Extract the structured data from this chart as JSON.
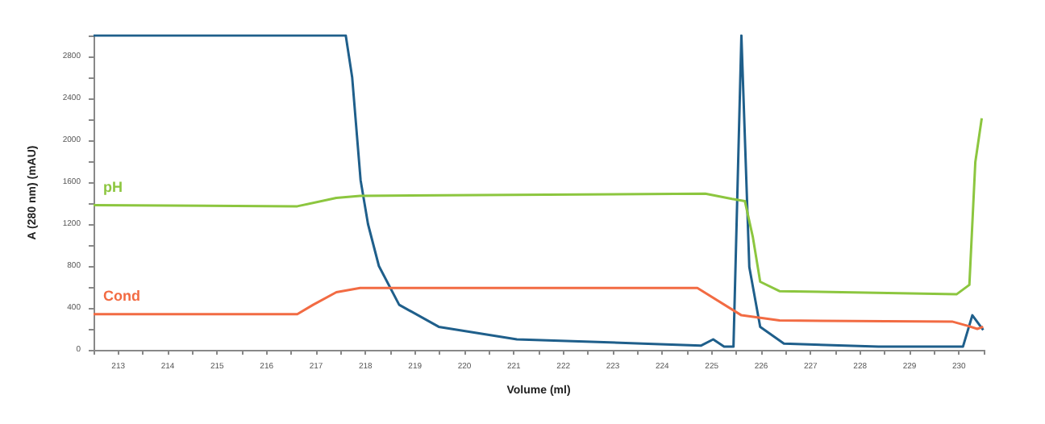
{
  "chart_data": {
    "type": "line",
    "xlabel": "Volume (ml)",
    "ylabel": "A (280 nm) (mAU)",
    "xlim": [
      212.5,
      230.5
    ],
    "ylim": [
      0,
      3000
    ],
    "xticks": [
      {
        "value": 212.5,
        "label": null
      },
      213,
      {
        "value": 213.5,
        "label": null
      },
      214,
      {
        "value": 214.5,
        "label": null
      },
      215,
      {
        "value": 215.5,
        "label": null
      },
      216,
      {
        "value": 216.5,
        "label": null
      },
      217,
      {
        "value": 217.5,
        "label": null
      },
      218,
      {
        "value": 218.5,
        "label": null
      },
      219,
      {
        "value": 219.5,
        "label": null
      },
      220,
      {
        "value": 220.5,
        "label": null
      },
      221,
      {
        "value": 221.5,
        "label": null
      },
      222,
      {
        "value": 222.5,
        "label": null
      },
      223,
      {
        "value": 223.5,
        "label": null
      },
      224,
      {
        "value": 224.5,
        "label": null
      },
      225,
      {
        "value": 225.5,
        "label": null
      },
      226,
      {
        "value": 226.5,
        "label": null
      },
      227,
      {
        "value": 227.5,
        "label": null
      },
      228,
      {
        "value": 228.5,
        "label": null
      },
      229,
      {
        "value": 229.5,
        "label": null
      },
      230,
      {
        "value": 230.5,
        "label": null
      }
    ],
    "yticks": [
      0,
      {
        "value": 200,
        "label": null
      },
      400,
      {
        "value": 600,
        "label": null
      },
      800,
      {
        "value": 1000,
        "label": null
      },
      1200,
      {
        "value": 1400,
        "label": null
      },
      1600,
      {
        "value": 1800,
        "label": null
      },
      2000,
      {
        "value": 2200,
        "label": null
      },
      2400,
      {
        "value": 2600,
        "label": null
      },
      2800,
      {
        "value": 3000,
        "label": null
      }
    ],
    "grid": false,
    "legend": false,
    "marker": "none",
    "line_style": "solid",
    "series": [
      {
        "color": "#1f5f8b",
        "x": [
          212.5,
          217.6,
          217.73,
          217.9,
          218.05,
          218.27,
          218.68,
          219.48,
          221.06,
          223.6,
          224.78,
          225.03,
          225.25,
          225.44,
          225.6,
          225.76,
          225.98,
          226.46,
          228.37,
          230.08,
          230.27,
          230.49
        ],
        "values": [
          3000,
          3000,
          2600,
          1620,
          1200,
          800,
          430,
          220,
          100,
          60,
          40,
          100,
          30,
          30,
          3000,
          790,
          220,
          60,
          30,
          30,
          330,
          190
        ]
      },
      {
        "name": "pH",
        "color": "#8cc63f",
        "x": [
          212.5,
          216.62,
          217.41,
          217.89,
          224.87,
          225.41,
          225.67,
          225.83,
          225.98,
          226.37,
          229.95,
          230.21,
          230.33,
          230.46
        ],
        "values": [
          1380,
          1370,
          1450,
          1470,
          1490,
          1440,
          1420,
          1080,
          650,
          560,
          530,
          620,
          1790,
          2210
        ]
      },
      {
        "name": "Cond",
        "color": "#f26b43",
        "x": [
          212.5,
          216.62,
          216.94,
          217.41,
          217.89,
          224.71,
          225.6,
          226.37,
          229.86,
          230.17,
          230.37,
          230.49
        ],
        "values": [
          340,
          340,
          430,
          550,
          590,
          590,
          330,
          280,
          270,
          230,
          200,
          220
        ]
      }
    ]
  }
}
